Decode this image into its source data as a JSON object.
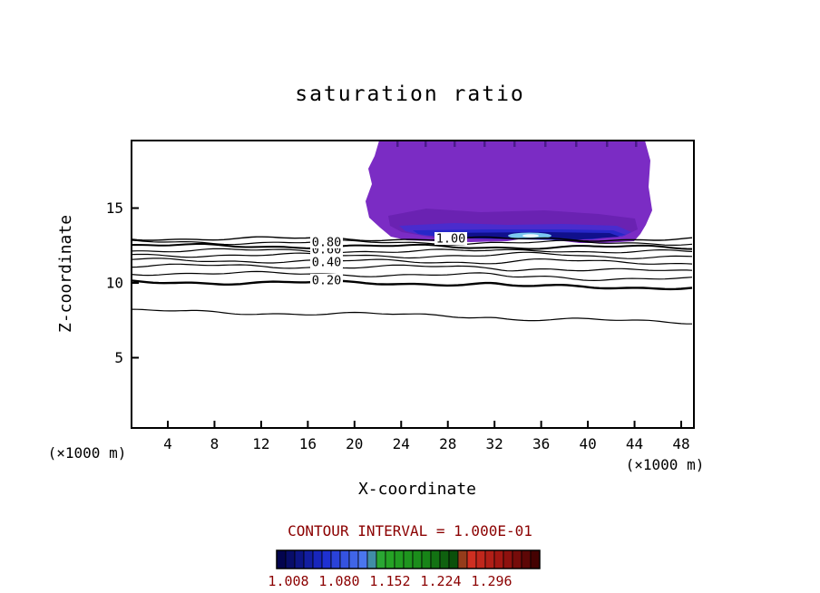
{
  "title": "saturation ratio",
  "axes": {
    "x_label": "X-coordinate",
    "y_label": "Z-coordinate",
    "x_unit_left": "(×1000 m)",
    "x_unit_right": "(×1000 m)",
    "x_ticks": [
      "4",
      "8",
      "12",
      "16",
      "20",
      "24",
      "28",
      "32",
      "36",
      "40",
      "44",
      "48"
    ],
    "y_ticks": [
      "5",
      "10",
      "15"
    ]
  },
  "contour_labels": [
    "0.20",
    "0.40",
    "0.60",
    "0.80",
    "1.00"
  ],
  "footer": {
    "interval_text": "CONTOUR INTERVAL = 1.000E-01",
    "colorbar_labels": [
      "1.008",
      "1.080",
      "1.152",
      "1.224",
      "1.296"
    ]
  },
  "colors": {
    "text": "#000000",
    "footer_red": "#8b0000",
    "plume_purple": "#7b2cc4",
    "plume_purple_dark": "#6a22b2",
    "plume_violet_blue": "#4a2ccd",
    "plume_blue": "#2727c8",
    "plume_navy": "#10108c",
    "plume_cyan": "#7cc8f0",
    "plume_white": "#eef8ff",
    "plume_notch": "#4a1a8a",
    "colorbar_gradient": [
      "#000040",
      "#1c2cd0",
      "#4f7cf0",
      "#28aa28",
      "#188818",
      "#0a4c0a",
      "#d83424",
      "#9c1410",
      "#380000"
    ]
  },
  "chart_data": {
    "type": "contour",
    "title": "saturation ratio",
    "xlabel": "X-coordinate (×1000 m)",
    "ylabel": "Z-coordinate (×1000 m)",
    "xlim": [
      1,
      50
    ],
    "ylim": [
      0,
      19.5
    ],
    "x_ticks": [
      4,
      8,
      12,
      16,
      20,
      24,
      28,
      32,
      36,
      40,
      44,
      48
    ],
    "y_ticks": [
      5,
      10,
      15
    ],
    "grid": false,
    "contour_interval": 0.1,
    "line_contours": [
      {
        "level": 0.1,
        "z_mean_km": 8.1
      },
      {
        "level": 0.2,
        "z_mean_km": 10.1
      },
      {
        "level": 0.3,
        "z_mean_km": 10.7
      },
      {
        "level": 0.4,
        "z_mean_km": 11.2
      },
      {
        "level": 0.5,
        "z_mean_km": 11.5
      },
      {
        "level": 0.6,
        "z_mean_km": 11.9
      },
      {
        "level": 0.7,
        "z_mean_km": 12.2
      },
      {
        "level": 0.8,
        "z_mean_km": 12.5
      },
      {
        "level": 0.9,
        "z_mean_km": 12.7
      },
      {
        "level": 1.0,
        "z_mean_km": 13.0
      }
    ],
    "labeled_levels": [
      0.2,
      0.4,
      0.6,
      0.8,
      1.0
    ],
    "filled_region": {
      "description": "supersaturated plume (saturation ratio > 1.0), filled purple/blue shades with cyan core at base",
      "x_range": [
        21,
        45
      ],
      "z_range": [
        13,
        19.5
      ],
      "levels": [
        1.008,
        1.08,
        1.152,
        1.224,
        1.296
      ]
    },
    "colorbar": {
      "position": "bottom",
      "tick_labels": [
        1.008,
        1.08,
        1.152,
        1.224,
        1.296
      ]
    }
  }
}
